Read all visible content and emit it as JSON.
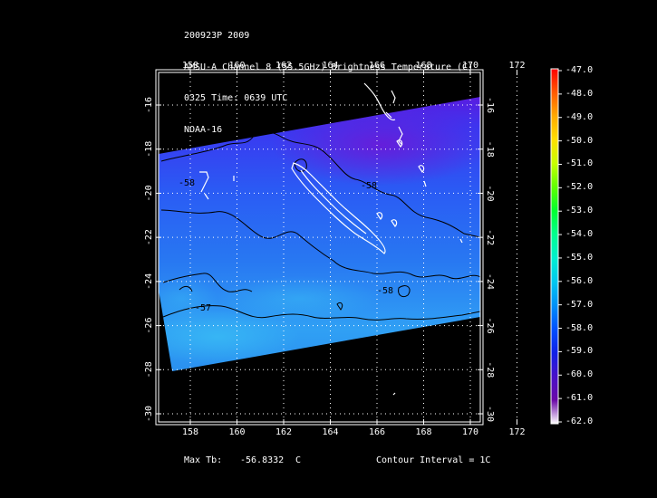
{
  "header": {
    "line1": "200923P 2009",
    "line2": "AMSU-A Channel 8 (55.5GHz) Brightness Temperature (C)",
    "line3": "0325 Time: 0639 UTC",
    "line4": "NOAA-16"
  },
  "map": {
    "lon_ticks": [
      "158",
      "160",
      "162",
      "164",
      "166",
      "168",
      "170",
      "172"
    ],
    "lat_ticks": [
      "-16",
      "-18",
      "-20",
      "-22",
      "-24",
      "-26",
      "-28",
      "-30"
    ],
    "contour_labels": [
      "-58",
      "-58",
      "-58",
      "-57"
    ],
    "grid": true
  },
  "colorbar": {
    "labels": [
      "-47.0",
      "-48.0",
      "-49.0",
      "-50.0",
      "-51.0",
      "-52.0",
      "-53.0",
      "-54.0",
      "-55.0",
      "-56.0",
      "-57.0",
      "-58.0",
      "-59.0",
      "-60.0",
      "-61.0",
      "-62.0"
    ],
    "colors": [
      "#ff0000",
      "#ff5a00",
      "#ffaa00",
      "#ffe000",
      "#c8ff00",
      "#60ff00",
      "#00ff30",
      "#00ff90",
      "#00f0d0",
      "#00c8f0",
      "#0090f8",
      "#0050ff",
      "#1020e8",
      "#4810c8",
      "#6a08a8",
      "#ffffff"
    ]
  },
  "footer": {
    "max_label": "Max Tb:",
    "max_value": "-56.8332",
    "max_unit": "C",
    "contour": "Contour Interval = 1C"
  }
}
